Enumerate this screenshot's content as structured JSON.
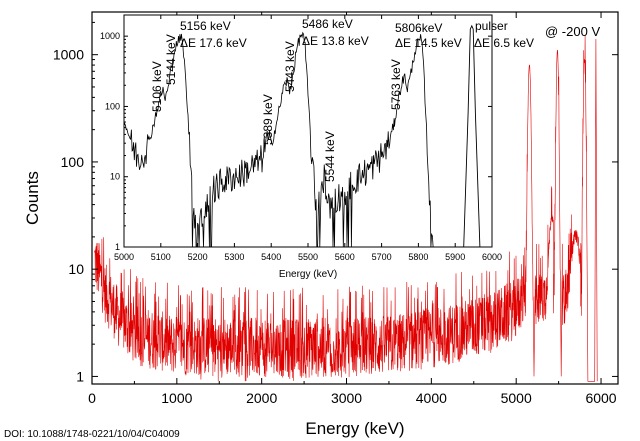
{
  "doi": "DOI: 10.1088/1748-0221/10/04/C04009",
  "chart_data": [
    {
      "type": "line",
      "id": "main",
      "xlabel": "Energy (keV)",
      "ylabel": "Counts",
      "xlim": [
        0,
        6200
      ],
      "ylim": [
        0.85,
        2500
      ],
      "yscale": "log",
      "xticks": [
        0,
        1000,
        2000,
        3000,
        4000,
        5000,
        6000
      ],
      "yticks": [
        1,
        10,
        100,
        1000
      ],
      "annotation": "@ -200 V",
      "series": [
        {
          "color": "#e00000",
          "noise_region": {
            "x": [
              30,
              5080
            ],
            "level": [
              [
                30,
                10
              ],
              [
                150,
                5
              ],
              [
                300,
                3
              ],
              [
                500,
                2
              ],
              [
                1000,
                1.6
              ],
              [
                2500,
                1.5
              ],
              [
                3500,
                1.6
              ],
              [
                4200,
                2.0
              ],
              [
                4700,
                2.6
              ],
              [
                5000,
                3.5
              ],
              [
                5080,
                4.5
              ]
            ]
          },
          "peaks": [
            {
              "x": 5156,
              "y": 800
            },
            {
              "x": 5486,
              "y": 1100
            },
            {
              "x": 5806,
              "y": 900
            },
            {
              "x": 5950,
              "y": 1400
            }
          ]
        }
      ]
    },
    {
      "type": "line",
      "id": "inset",
      "xlabel": "Energy (keV)",
      "ylabel": "",
      "xlim": [
        5000,
        6000
      ],
      "ylim": [
        1,
        2000
      ],
      "yscale": "log",
      "xticks": [
        5000,
        5100,
        5200,
        5300,
        5400,
        5500,
        5600,
        5700,
        5800,
        5900,
        6000
      ],
      "yticks": [
        1,
        10,
        100,
        1000
      ],
      "series": [
        {
          "color": "#000000",
          "points": [
            [
              5000,
              60
            ],
            [
              5010,
              45
            ],
            [
              5020,
              30
            ],
            [
              5030,
              22
            ],
            [
              5040,
              18
            ],
            [
              5050,
              20
            ],
            [
              5060,
              25
            ],
            [
              5070,
              35
            ],
            [
              5080,
              55
            ],
            [
              5090,
              90
            ],
            [
              5100,
              150
            ],
            [
              5106,
              170
            ],
            [
              5112,
              130
            ],
            [
              5120,
              180
            ],
            [
              5130,
              400
            ],
            [
              5140,
              700
            ],
            [
              5150,
              900
            ],
            [
              5156,
              950
            ],
            [
              5162,
              600
            ],
            [
              5170,
              150
            ],
            [
              5180,
              20
            ],
            [
              5190,
              3
            ],
            [
              5200,
              2
            ],
            [
              5220,
              3
            ],
            [
              5240,
              6
            ],
            [
              5260,
              8
            ],
            [
              5280,
              9
            ],
            [
              5300,
              10
            ],
            [
              5320,
              11
            ],
            [
              5340,
              13
            ],
            [
              5360,
              15
            ],
            [
              5375,
              18
            ],
            [
              5385,
              30
            ],
            [
              5389,
              40
            ],
            [
              5395,
              28
            ],
            [
              5405,
              35
            ],
            [
              5415,
              60
            ],
            [
              5425,
              110
            ],
            [
              5435,
              200
            ],
            [
              5443,
              230
            ],
            [
              5450,
              160
            ],
            [
              5460,
              300
            ],
            [
              5470,
              700
            ],
            [
              5480,
              1000
            ],
            [
              5486,
              1100
            ],
            [
              5492,
              700
            ],
            [
              5500,
              150
            ],
            [
              5510,
              20
            ],
            [
              5520,
              5
            ],
            [
              5530,
              4
            ],
            [
              5540,
              6
            ],
            [
              5544,
              12
            ],
            [
              5550,
              5
            ],
            [
              5560,
              4
            ],
            [
              5580,
              5
            ],
            [
              5600,
              6
            ],
            [
              5620,
              8
            ],
            [
              5640,
              10
            ],
            [
              5660,
              12
            ],
            [
              5680,
              15
            ],
            [
              5700,
              20
            ],
            [
              5720,
              30
            ],
            [
              5735,
              60
            ],
            [
              5745,
              120
            ],
            [
              5755,
              220
            ],
            [
              5763,
              260
            ],
            [
              5770,
              180
            ],
            [
              5780,
              300
            ],
            [
              5790,
              600
            ],
            [
              5800,
              850
            ],
            [
              5806,
              900
            ],
            [
              5812,
              600
            ],
            [
              5820,
              80
            ],
            [
              5830,
              6
            ],
            [
              5840,
              1
            ]
          ],
          "pulser_peak": {
            "x": 5945,
            "y": 1400
          }
        }
      ],
      "annotations": [
        {
          "text": "5106 keV",
          "x": 5106,
          "y": 170,
          "rotated": true
        },
        {
          "text": "5144 keV",
          "x": 5144,
          "y": 850,
          "rotated": true
        },
        {
          "text": "5156 keV",
          "x": 5156,
          "y": 950,
          "line": 1
        },
        {
          "text": "ΔE 17.6 keV",
          "x": 5156,
          "y": 950,
          "line": 2
        },
        {
          "text": "5389 keV",
          "x": 5389,
          "y": 40,
          "rotated": true
        },
        {
          "text": "5443 keV",
          "x": 5443,
          "y": 230,
          "rotated": true
        },
        {
          "text": "5486 keV",
          "x": 5486,
          "y": 1100,
          "line": 1
        },
        {
          "text": "ΔE 13.8 keV",
          "x": 5486,
          "y": 1100,
          "line": 2
        },
        {
          "text": "5544 keV",
          "x": 5544,
          "y": 12,
          "rotated": true
        },
        {
          "text": "5763 keV",
          "x": 5763,
          "y": 260,
          "rotated": true
        },
        {
          "text": "5806keV",
          "x": 5806,
          "y": 900,
          "line": 1
        },
        {
          "text": "ΔE 14.5 keV",
          "x": 5806,
          "y": 900,
          "line": 2
        },
        {
          "text": "pulser",
          "x": 5945,
          "y": 1400,
          "line": 1
        },
        {
          "text": "ΔE 6.5 keV",
          "x": 5945,
          "y": 1400,
          "line": 2
        }
      ]
    }
  ]
}
